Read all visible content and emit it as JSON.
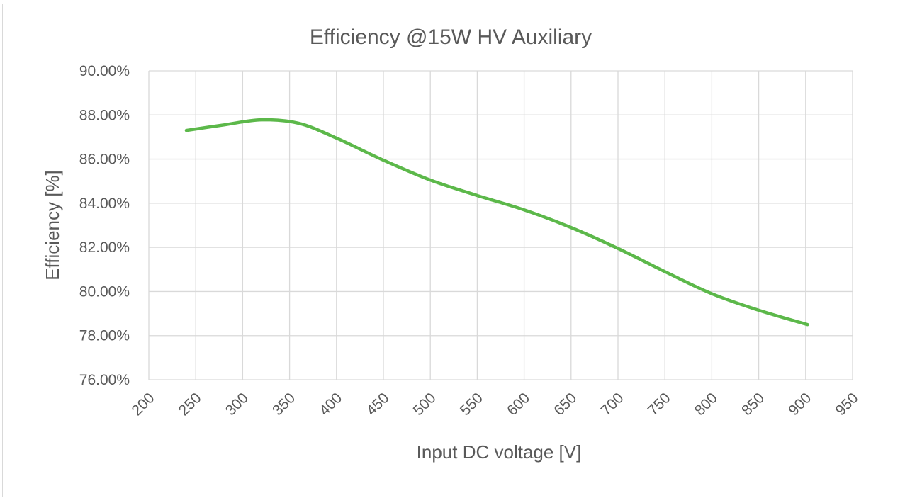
{
  "chart_data": {
    "type": "line",
    "title": "Efficiency @15W HV Auxiliary",
    "xlabel": "Input DC voltage [V]",
    "ylabel": "Efficiency [%]",
    "xlim": [
      200,
      950
    ],
    "ylim": [
      76,
      90
    ],
    "x_ticks": [
      200,
      250,
      300,
      350,
      400,
      450,
      500,
      550,
      600,
      650,
      700,
      750,
      800,
      850,
      900,
      950
    ],
    "x_tick_labels": [
      "200",
      "250",
      "300",
      "350",
      "400",
      "450",
      "500",
      "550",
      "600",
      "650",
      "700",
      "750",
      "800",
      "850",
      "900",
      "950"
    ],
    "y_ticks": [
      76,
      78,
      80,
      82,
      84,
      86,
      88,
      90
    ],
    "y_tick_labels": [
      "76.00%",
      "78.00%",
      "80.00%",
      "82.00%",
      "84.00%",
      "86.00%",
      "88.00%",
      "90.00%"
    ],
    "grid": true,
    "smooth": true,
    "series": [
      {
        "color": "#5cb84a",
        "x": [
          240,
          280,
          320,
          360,
          400,
          450,
          500,
          550,
          600,
          650,
          700,
          750,
          800,
          850,
          902
        ],
        "y": [
          87.3,
          87.55,
          87.78,
          87.62,
          86.95,
          85.95,
          85.05,
          84.35,
          83.7,
          82.9,
          81.95,
          80.9,
          79.9,
          79.15,
          78.5
        ]
      }
    ]
  }
}
